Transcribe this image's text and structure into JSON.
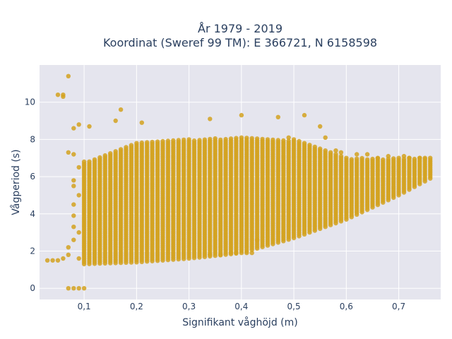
{
  "chart_data": {
    "type": "scatter",
    "title_line1": "År 1979 - 2019",
    "title_line2": "Koordinat (Sweref 99 TM): E 366721, N 6158598",
    "xlabel": "Signifikant våghöjd (m)",
    "ylabel": "Vågperiod (s)",
    "xlim": [
      0.015,
      0.78
    ],
    "ylim": [
      -0.6,
      12.0
    ],
    "x_ticks": [
      0.1,
      0.2,
      0.3,
      0.4,
      0.5,
      0.6,
      0.7
    ],
    "x_tick_labels": [
      "0,1",
      "0,2",
      "0,3",
      "0,4",
      "0,5",
      "0,6",
      "0,7"
    ],
    "y_ticks": [
      0,
      2,
      4,
      6,
      8,
      10
    ],
    "y_tick_labels": [
      "0",
      "2",
      "4",
      "6",
      "8",
      "10"
    ],
    "grid": true,
    "legend": "none",
    "marker_color": "#D4A21F",
    "plot_bgcolor": "#E5E5EE",
    "density_band": {
      "x_start": 0.1,
      "x_end": 0.76,
      "x_step": 0.01,
      "lower": [
        [
          0.1,
          1.3
        ],
        [
          0.2,
          1.4
        ],
        [
          0.3,
          1.6
        ],
        [
          0.4,
          1.9
        ],
        [
          0.5,
          2.7
        ],
        [
          0.6,
          3.7
        ],
        [
          0.7,
          5.0
        ],
        [
          0.76,
          5.9
        ]
      ],
      "upper": [
        [
          0.1,
          6.8
        ],
        [
          0.2,
          7.8
        ],
        [
          0.3,
          8.0
        ],
        [
          0.4,
          8.1
        ],
        [
          0.5,
          8.0
        ],
        [
          0.6,
          7.0
        ],
        [
          0.7,
          7.0
        ],
        [
          0.76,
          7.0
        ]
      ]
    },
    "outlier_points": [
      {
        "x": 0.05,
        "y": 10.4
      },
      {
        "x": 0.06,
        "y": 10.3
      },
      {
        "x": 0.06,
        "y": 10.4
      },
      {
        "x": 0.07,
        "y": 11.4
      },
      {
        "x": 0.17,
        "y": 9.6
      },
      {
        "x": 0.16,
        "y": 9.0
      },
      {
        "x": 0.21,
        "y": 8.9
      },
      {
        "x": 0.09,
        "y": 8.8
      },
      {
        "x": 0.08,
        "y": 8.6
      },
      {
        "x": 0.4,
        "y": 9.3
      },
      {
        "x": 0.52,
        "y": 9.3
      },
      {
        "x": 0.34,
        "y": 9.1
      },
      {
        "x": 0.47,
        "y": 9.2
      },
      {
        "x": 0.11,
        "y": 8.7
      },
      {
        "x": 0.07,
        "y": 0.0
      },
      {
        "x": 0.08,
        "y": 0.0
      },
      {
        "x": 0.09,
        "y": 0.0
      },
      {
        "x": 0.1,
        "y": 0.0
      },
      {
        "x": 0.03,
        "y": 1.5
      },
      {
        "x": 0.04,
        "y": 1.5
      },
      {
        "x": 0.05,
        "y": 1.5
      },
      {
        "x": 0.06,
        "y": 1.6
      },
      {
        "x": 0.07,
        "y": 1.8
      },
      {
        "x": 0.07,
        "y": 2.2
      },
      {
        "x": 0.08,
        "y": 2.6
      },
      {
        "x": 0.08,
        "y": 3.3
      },
      {
        "x": 0.08,
        "y": 3.9
      },
      {
        "x": 0.08,
        "y": 4.5
      },
      {
        "x": 0.07,
        "y": 7.3
      },
      {
        "x": 0.08,
        "y": 7.2
      },
      {
        "x": 0.08,
        "y": 5.8
      },
      {
        "x": 0.08,
        "y": 5.5
      },
      {
        "x": 0.09,
        "y": 6.5
      },
      {
        "x": 0.09,
        "y": 5.0
      },
      {
        "x": 0.09,
        "y": 3.0
      },
      {
        "x": 0.09,
        "y": 1.6
      },
      {
        "x": 0.39,
        "y": 1.9
      },
      {
        "x": 0.38,
        "y": 1.9
      },
      {
        "x": 0.41,
        "y": 1.9
      },
      {
        "x": 0.42,
        "y": 1.9
      },
      {
        "x": 0.36,
        "y": 1.8
      },
      {
        "x": 0.34,
        "y": 1.8
      },
      {
        "x": 0.43,
        "y": 2.6
      },
      {
        "x": 0.55,
        "y": 8.7
      },
      {
        "x": 0.49,
        "y": 8.1
      },
      {
        "x": 0.56,
        "y": 8.1
      },
      {
        "x": 0.58,
        "y": 7.4
      },
      {
        "x": 0.59,
        "y": 7.3
      },
      {
        "x": 0.62,
        "y": 7.2
      },
      {
        "x": 0.64,
        "y": 7.2
      },
      {
        "x": 0.66,
        "y": 7.0
      },
      {
        "x": 0.68,
        "y": 7.1
      },
      {
        "x": 0.71,
        "y": 7.1
      },
      {
        "x": 0.72,
        "y": 7.0
      },
      {
        "x": 0.74,
        "y": 7.0
      },
      {
        "x": 0.75,
        "y": 7.0
      }
    ]
  }
}
